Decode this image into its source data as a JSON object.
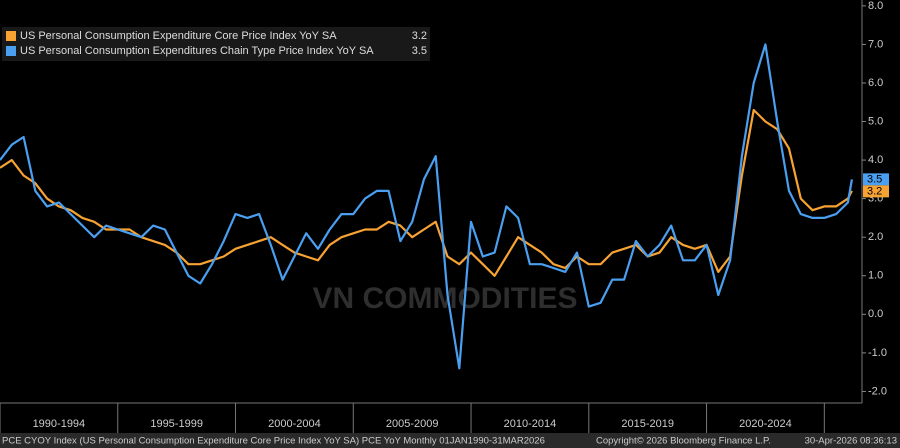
{
  "chart_data": {
    "type": "line",
    "x": [
      1990.0,
      1990.5,
      1991.0,
      1991.5,
      1992.0,
      1992.5,
      1993.0,
      1993.5,
      1994.0,
      1994.5,
      1995.0,
      1995.5,
      1996.0,
      1996.5,
      1997.0,
      1997.5,
      1998.0,
      1998.5,
      1999.0,
      1999.5,
      2000.0,
      2000.5,
      2001.0,
      2001.5,
      2002.0,
      2002.5,
      2003.0,
      2003.5,
      2004.0,
      2004.5,
      2005.0,
      2005.5,
      2006.0,
      2006.5,
      2007.0,
      2007.5,
      2008.0,
      2008.5,
      2009.0,
      2009.5,
      2010.0,
      2010.5,
      2011.0,
      2011.5,
      2012.0,
      2012.5,
      2013.0,
      2013.5,
      2014.0,
      2014.5,
      2015.0,
      2015.5,
      2016.0,
      2016.5,
      2017.0,
      2017.5,
      2018.0,
      2018.5,
      2019.0,
      2019.5,
      2020.0,
      2020.5,
      2021.0,
      2021.5,
      2022.0,
      2022.5,
      2023.0,
      2023.5,
      2024.0,
      2024.5,
      2025.0,
      2025.5,
      2026.0,
      2026.17
    ],
    "series": [
      {
        "name": "US Personal Consumption Expenditure Core Price Index YoY SA",
        "color": "#f7a233",
        "values": [
          3.8,
          4.0,
          3.6,
          3.4,
          3.0,
          2.8,
          2.7,
          2.5,
          2.4,
          2.2,
          2.2,
          2.2,
          2.0,
          1.9,
          1.8,
          1.6,
          1.3,
          1.3,
          1.4,
          1.5,
          1.7,
          1.8,
          1.9,
          2.0,
          1.8,
          1.6,
          1.5,
          1.4,
          1.8,
          2.0,
          2.1,
          2.2,
          2.2,
          2.4,
          2.3,
          2.0,
          2.2,
          2.4,
          1.5,
          1.3,
          1.6,
          1.3,
          1.0,
          1.5,
          2.0,
          1.8,
          1.6,
          1.3,
          1.2,
          1.5,
          1.3,
          1.3,
          1.6,
          1.7,
          1.8,
          1.5,
          1.6,
          2.0,
          1.8,
          1.7,
          1.8,
          1.1,
          1.5,
          3.6,
          5.3,
          5.0,
          4.8,
          4.3,
          3.0,
          2.7,
          2.8,
          2.8,
          3.0,
          3.2
        ]
      },
      {
        "name": "US Personal Consumption Expenditures Chain Type Price Index YoY SA",
        "color": "#4a9ff0",
        "values": [
          4.0,
          4.4,
          4.6,
          3.2,
          2.8,
          2.9,
          2.6,
          2.3,
          2.0,
          2.3,
          2.2,
          2.1,
          2.0,
          2.3,
          2.2,
          1.6,
          1.0,
          0.8,
          1.3,
          1.9,
          2.6,
          2.5,
          2.6,
          1.8,
          0.9,
          1.5,
          2.1,
          1.7,
          2.2,
          2.6,
          2.6,
          3.0,
          3.2,
          3.2,
          1.9,
          2.4,
          3.5,
          4.1,
          0.5,
          -1.4,
          2.4,
          1.5,
          1.6,
          2.8,
          2.5,
          1.3,
          1.3,
          1.2,
          1.1,
          1.6,
          0.2,
          0.3,
          0.9,
          0.9,
          1.9,
          1.5,
          1.8,
          2.3,
          1.4,
          1.4,
          1.8,
          0.5,
          1.4,
          4.1,
          6.0,
          7.0,
          5.0,
          3.2,
          2.6,
          2.5,
          2.5,
          2.6,
          2.9,
          3.5
        ]
      }
    ],
    "xlim": [
      1990,
      2026.6
    ],
    "xticks": [
      {
        "value": 1990,
        "label": "1990-1994"
      },
      {
        "value": 1995,
        "label": "1995-1999"
      },
      {
        "value": 2000,
        "label": "2000-2004"
      },
      {
        "value": 2005,
        "label": "2005-2009"
      },
      {
        "value": 2010,
        "label": "2010-2014"
      },
      {
        "value": 2015,
        "label": "2015-2019"
      },
      {
        "value": 2020,
        "label": "2020-2024"
      },
      {
        "value": 2025,
        "label": null
      }
    ],
    "ylim": [
      -2.3,
      8.1
    ],
    "yticks": [
      {
        "value": -2,
        "label": "-2.0"
      },
      {
        "value": -1,
        "label": "-1.0"
      },
      {
        "value": 0,
        "label": "0.0"
      },
      {
        "value": 1,
        "label": "1.0"
      },
      {
        "value": 2,
        "label": "2.0"
      },
      {
        "value": 3,
        "label": "3.0"
      },
      {
        "value": 4,
        "label": "4.0"
      },
      {
        "value": 5,
        "label": "5.0"
      },
      {
        "value": 6,
        "label": "6.0"
      },
      {
        "value": 7,
        "label": "7.0"
      },
      {
        "value": 8,
        "label": "8.0"
      }
    ],
    "watermark": "VN COMMODITIES"
  },
  "footer": {
    "source": "PCE CYOY Index (US Personal Consumption Expenditure Core Price Index YoY SA) PCE YoY Monthly 01JAN1990-31MAR2026",
    "copyright": "Copyright© 2026 Bloomberg Finance L.P.",
    "timestamp": "30-Apr-2026 08:36:13"
  }
}
